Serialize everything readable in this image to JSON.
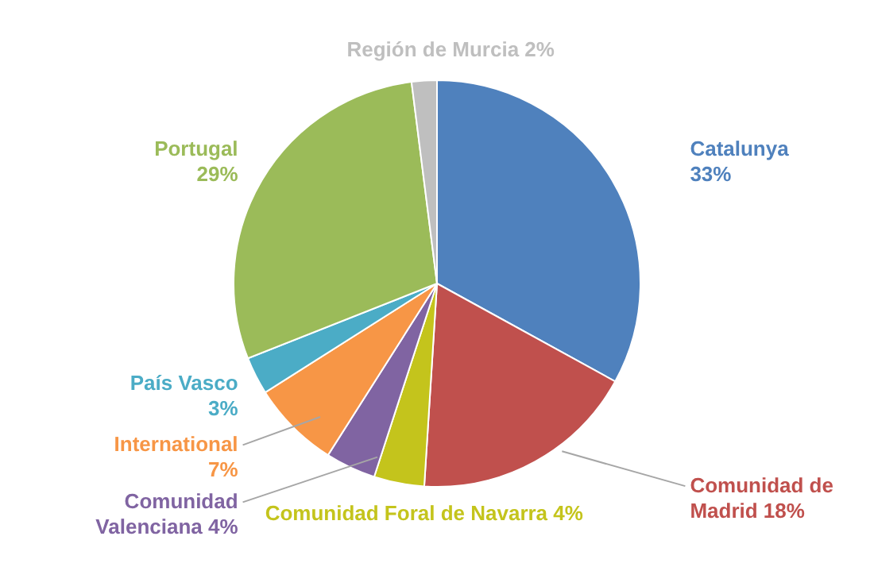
{
  "chart_data": {
    "type": "pie",
    "categories": [
      "Catalunya",
      "Comunidad de Madrid",
      "Comunidad Foral de Navarra",
      "Comunidad Valenciana",
      "International",
      "País Vasco",
      "Portugal",
      "Región de Murcia"
    ],
    "values": [
      33,
      18,
      4,
      4,
      7,
      3,
      29,
      2
    ],
    "value_labels": [
      "33%",
      "18%",
      "4%",
      "4%",
      "7%",
      "3%",
      "29%",
      "2%"
    ],
    "colors": [
      "#4f81bd",
      "#c0504d",
      "#c4c41c",
      "#8064a2",
      "#f79646",
      "#4bacc6",
      "#9bbb59",
      "#bfbfbf"
    ]
  }
}
